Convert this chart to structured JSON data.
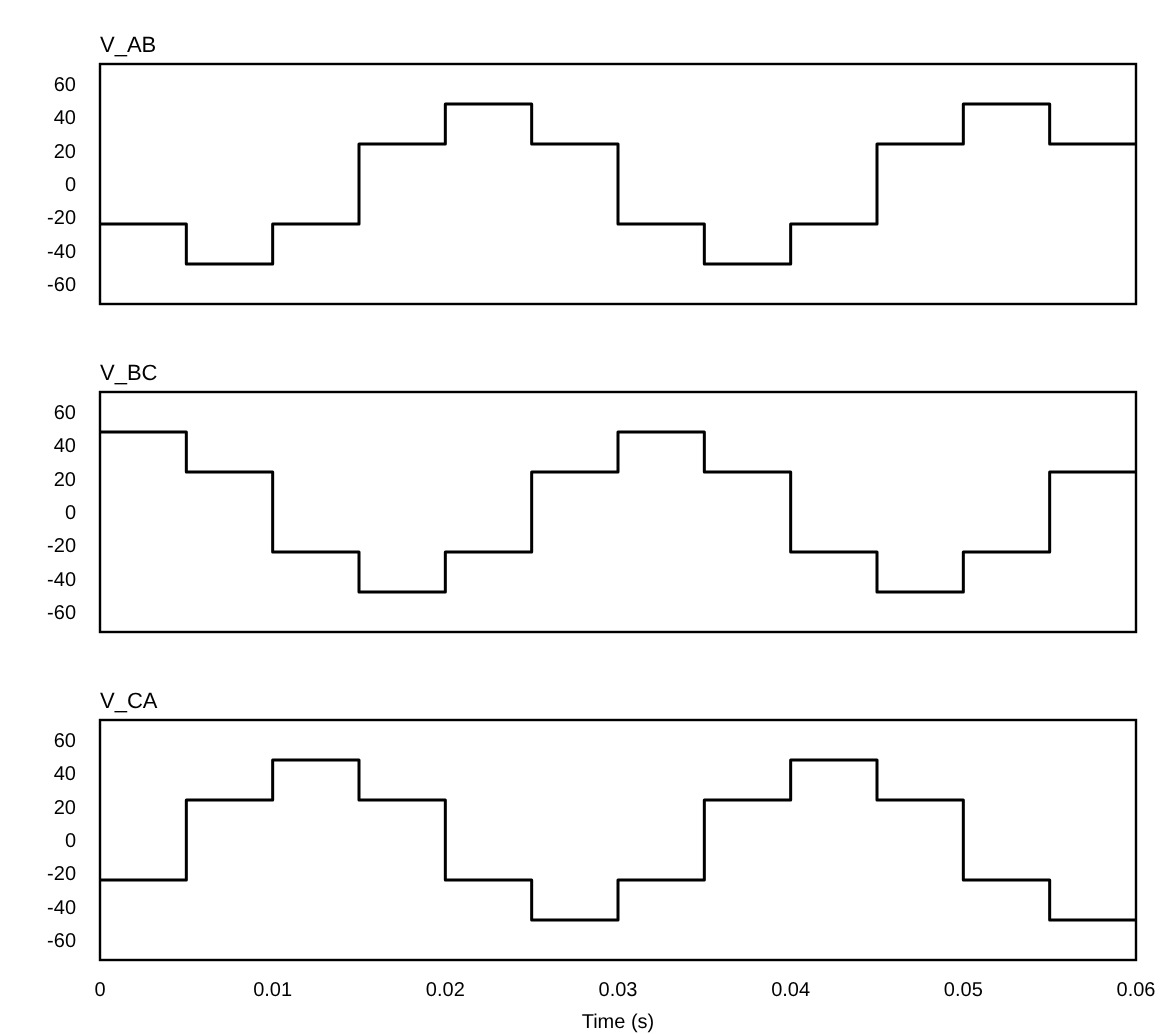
{
  "chart_data": [
    {
      "type": "step",
      "title": "V_AB",
      "x": [
        0,
        0.005,
        0.01,
        0.015,
        0.02,
        0.025,
        0.03,
        0.035,
        0.04,
        0.045,
        0.05,
        0.055,
        0.06
      ],
      "values": [
        -24,
        -48,
        -24,
        24,
        48,
        24,
        -24,
        -48,
        -24,
        24,
        48,
        24,
        24
      ],
      "color": "#000000",
      "xlim": [
        0,
        0.06
      ],
      "ylim": [
        -72,
        72
      ],
      "yticks": [
        -60,
        -40,
        -20,
        0,
        20,
        40,
        60
      ],
      "tick_labels": "y",
      "grid": false,
      "legend": false
    },
    {
      "type": "step",
      "title": "V_BC",
      "x": [
        0,
        0.005,
        0.01,
        0.015,
        0.02,
        0.025,
        0.03,
        0.035,
        0.04,
        0.045,
        0.05,
        0.055,
        0.06
      ],
      "values": [
        48,
        24,
        -24,
        -48,
        -24,
        24,
        48,
        24,
        -24,
        -48,
        -24,
        24,
        24
      ],
      "color": "#000000",
      "xlim": [
        0,
        0.06
      ],
      "ylim": [
        -72,
        72
      ],
      "yticks": [
        -60,
        -40,
        -20,
        0,
        20,
        40,
        60
      ],
      "tick_labels": "y",
      "grid": false,
      "legend": false
    },
    {
      "type": "step",
      "title": "V_CA",
      "xlabel": "Time (s)",
      "x": [
        0,
        0.005,
        0.01,
        0.015,
        0.02,
        0.025,
        0.03,
        0.035,
        0.04,
        0.045,
        0.05,
        0.055,
        0.06
      ],
      "values": [
        -24,
        24,
        48,
        24,
        -24,
        -48,
        -24,
        24,
        48,
        24,
        -24,
        -48,
        -48
      ],
      "color": "#000000",
      "xlim": [
        0,
        0.06
      ],
      "ylim": [
        -72,
        72
      ],
      "xticks": [
        0,
        0.01,
        0.02,
        0.03,
        0.04,
        0.05,
        0.06
      ],
      "yticks": [
        -60,
        -40,
        -20,
        0,
        20,
        40,
        60
      ],
      "grid": false,
      "legend": false
    }
  ]
}
